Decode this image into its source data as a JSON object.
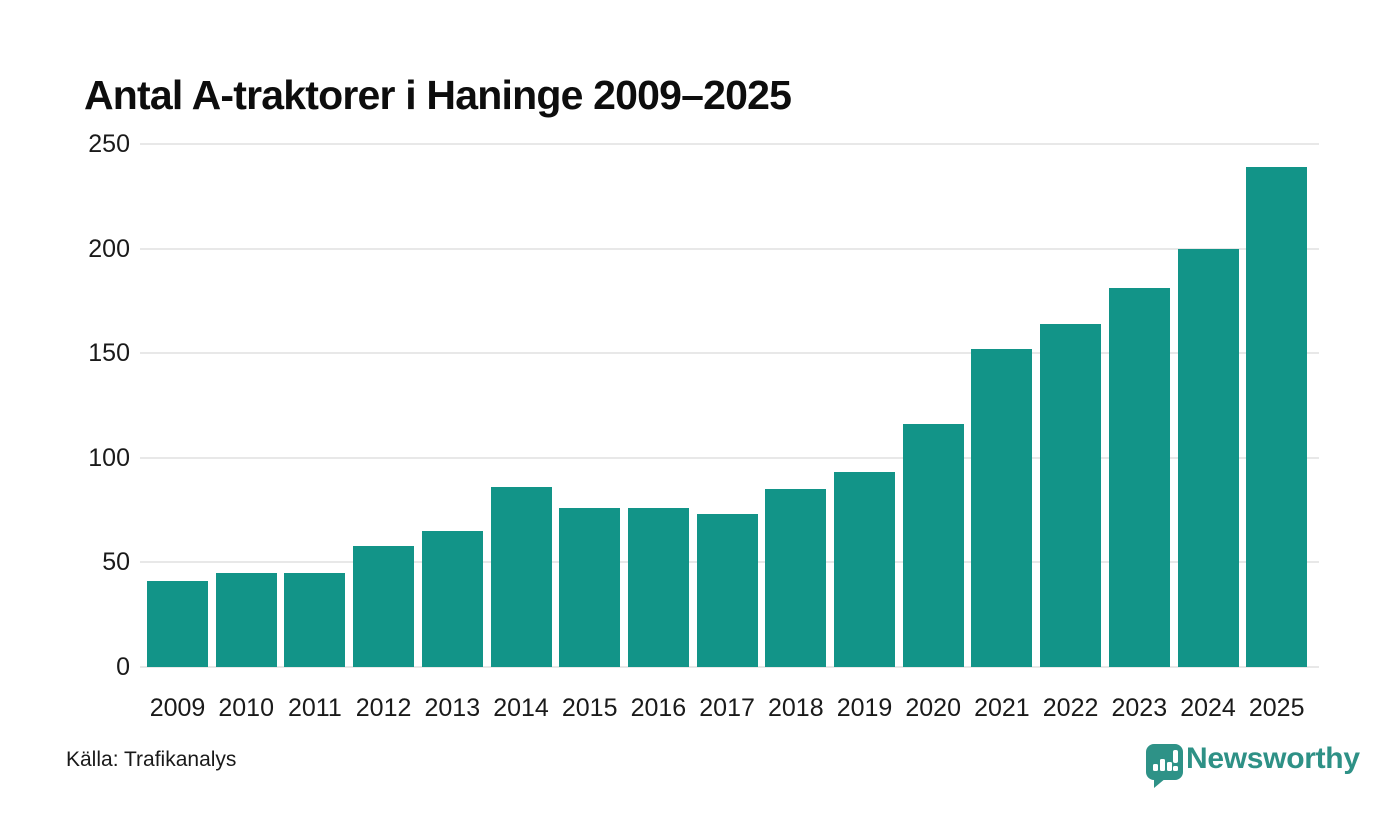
{
  "header": {
    "title": "Antal A-traktorer i Haninge 2009–2025"
  },
  "footer": {
    "source": "Källa: Trafikanalys",
    "brand": "Newsworthy"
  },
  "icons": {
    "logo": "newsworthy-speech-bubble-bar-chart-icon"
  },
  "colors": {
    "bar": "#129488",
    "grid": "#e8e8e8",
    "axis_text": "#1a1a1a",
    "title_text": "#0d0d0d",
    "brand_teal": "#2E9186"
  },
  "chart_data": {
    "type": "bar",
    "title": "Antal A-traktorer i Haninge 2009–2025",
    "categories": [
      "2009",
      "2010",
      "2011",
      "2012",
      "2013",
      "2014",
      "2015",
      "2016",
      "2017",
      "2018",
      "2019",
      "2020",
      "2021",
      "2022",
      "2023",
      "2024",
      "2025"
    ],
    "values": [
      41,
      45,
      45,
      58,
      65,
      86,
      76,
      76,
      73,
      85,
      93,
      116,
      152,
      164,
      181,
      200,
      239
    ],
    "xlabel": "",
    "ylabel": "",
    "ylim": [
      0,
      250
    ],
    "yticks": [
      0,
      50,
      100,
      150,
      200,
      250
    ],
    "grid": true,
    "legend": "none",
    "bar_color": "#129488",
    "source": "Källa: Trafikanalys"
  }
}
